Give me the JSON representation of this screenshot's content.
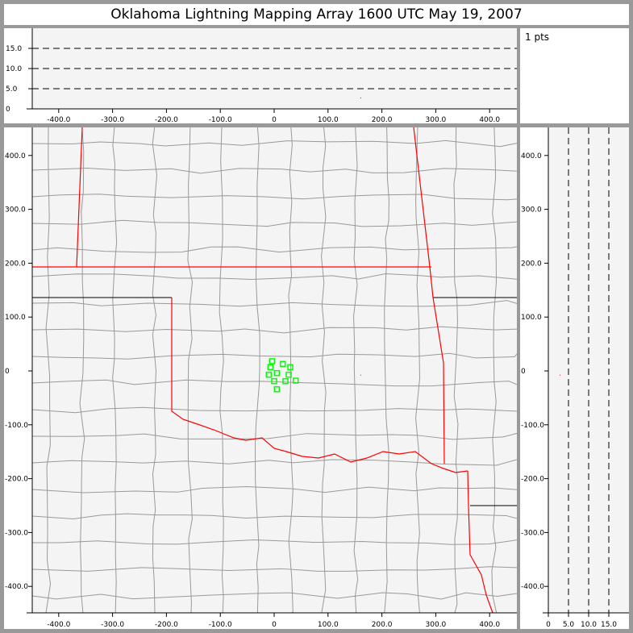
{
  "title": "Oklahoma Lightning Mapping Array   1600 UTC  May 19, 2007",
  "point_count_label": "1 pts",
  "colors": {
    "background": "#f4f4f4",
    "state_border": "#ff0000",
    "county_line": "#999999",
    "station": "#00ff00",
    "source_point": "#ff0000",
    "frame": "#999999"
  },
  "chart_data": [
    {
      "type": "scatter",
      "panel": "altitude-vs-east-west",
      "xlim": [
        -460,
        445
      ],
      "ylim": [
        0,
        20
      ],
      "x_ticks": [
        "-400.0",
        "-300.0",
        "-200.0",
        "-100.0",
        "0",
        "100.0",
        "200.0",
        "300.0",
        "400.0"
      ],
      "x_tick_values": [
        -400,
        -300,
        -200,
        -100,
        0,
        100,
        200,
        300,
        400
      ],
      "y_ticks": [
        "0",
        "5.0",
        "10.0",
        "15.0"
      ],
      "y_tick_values": [
        0,
        5,
        10,
        15
      ],
      "dashed_gridlines_y": [
        5,
        10,
        15
      ],
      "points": [
        {
          "x": 160,
          "y": 2.8
        }
      ]
    },
    {
      "type": "scatter",
      "panel": "plan-view-map",
      "xlim": [
        -450,
        450
      ],
      "ylim": [
        -450,
        450
      ],
      "x_ticks": [
        "-400.0",
        "-300.0",
        "-200.0",
        "-100.0",
        "0",
        "100.0",
        "200.0",
        "300.0",
        "400.0"
      ],
      "x_tick_values": [
        -400,
        -300,
        -200,
        -100,
        0,
        100,
        200,
        300,
        400
      ],
      "y_ticks": [
        "-400.0",
        "-300.0",
        "-200.0",
        "-100.0",
        "0",
        "100.0",
        "200.0",
        "300.0",
        "400.0"
      ],
      "y_tick_values": [
        -400,
        -300,
        -200,
        -100,
        0,
        100,
        200,
        300,
        400
      ],
      "stations": [
        {
          "x": -4,
          "y": 18
        },
        {
          "x": 16,
          "y": 13
        },
        {
          "x": 30,
          "y": 7
        },
        {
          "x": -7,
          "y": 7
        },
        {
          "x": 5,
          "y": -4
        },
        {
          "x": -10,
          "y": -7
        },
        {
          "x": 27,
          "y": -7
        },
        {
          "x": 0,
          "y": -19
        },
        {
          "x": 21,
          "y": -19
        },
        {
          "x": 40,
          "y": -18
        },
        {
          "x": 5,
          "y": -34
        }
      ],
      "points": [
        {
          "x": 160,
          "y": -7
        }
      ]
    },
    {
      "type": "scatter",
      "panel": "north-south-vs-altitude",
      "xlim": [
        0,
        20
      ],
      "ylim": [
        -450,
        450
      ],
      "x_ticks": [
        "0",
        "5.0",
        "10.0",
        "15.0"
      ],
      "x_tick_values": [
        0,
        5,
        10,
        15
      ],
      "y_ticks": [
        "-400.0",
        "-300.0",
        "-200.0",
        "-100.0",
        "0",
        "100.0",
        "200.0",
        "300.0",
        "400.0"
      ],
      "y_tick_values": [
        -400,
        -300,
        -200,
        -100,
        0,
        100,
        200,
        300,
        400
      ],
      "dashed_gridlines_x": [
        5,
        10,
        15
      ],
      "points": [
        {
          "x": 2.8,
          "y": -7
        }
      ]
    }
  ]
}
